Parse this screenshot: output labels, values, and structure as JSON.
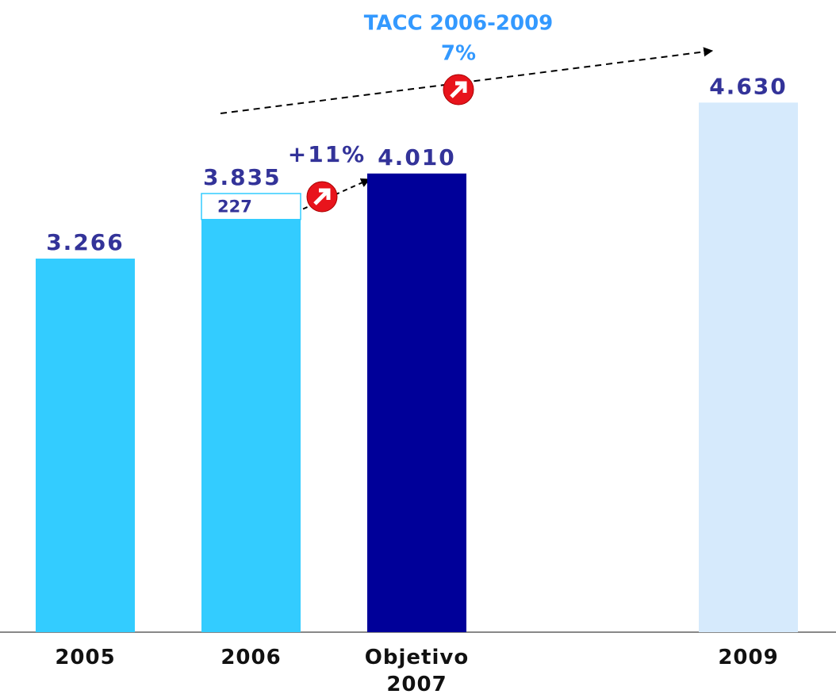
{
  "chart_data": {
    "type": "bar",
    "categories": [
      "2005",
      "2006",
      "Objetivo 2007",
      null,
      "2009"
    ],
    "series": [
      {
        "colors": [
          "#33ccff",
          "#33ccff",
          "#000099",
          null,
          "#d6eafc"
        ],
        "values": [
          3266,
          3608,
          4010,
          null,
          4630
        ]
      },
      {
        "color": "#ffffff",
        "border": "#33ccff",
        "values": [
          null,
          227,
          null,
          null,
          null
        ],
        "value_labels": [
          null,
          "227",
          null,
          null,
          null
        ]
      }
    ],
    "totals": [
      3266,
      3835,
      4010,
      null,
      4630
    ],
    "total_labels": [
      "3.266",
      "3.835",
      "4.010",
      null,
      "4.630"
    ],
    "ylim": [
      0,
      5000
    ],
    "annotations": [
      "TACC 2006-2009",
      "7%",
      "+11%"
    ]
  }
}
